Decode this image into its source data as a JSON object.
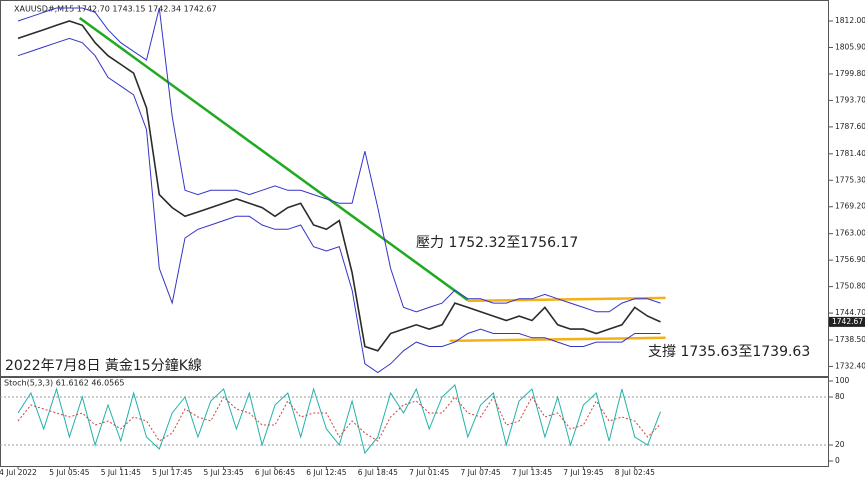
{
  "chart_data": [
    {
      "type": "line",
      "title": "XAUUSD#,M15  1742.70 1743.15 1742.34 1742.67",
      "annotations": [
        "壓力 1752.32至1756.17",
        "支撐 1735.63至1739.63",
        "2022年7月8日 黃金15分鐘K線"
      ],
      "ylim": [
        1730.2,
        1816.84
      ],
      "yticks": [
        {
          "value": 1812.0,
          "label": "1812.00"
        },
        {
          "value": 1805.9,
          "label": "1805.90"
        },
        {
          "value": 1799.8,
          "label": "1799.80"
        },
        {
          "value": 1793.7,
          "label": "1793.70"
        },
        {
          "value": 1787.6,
          "label": "1787.60"
        },
        {
          "value": 1781.4,
          "label": "1781.40"
        },
        {
          "value": 1775.3,
          "label": "1775.30"
        },
        {
          "value": 1769.2,
          "label": "1769.20"
        },
        {
          "value": 1763.0,
          "label": "1763.00"
        },
        {
          "value": 1756.9,
          "label": "1756.90"
        },
        {
          "value": 1750.8,
          "label": "1750.80"
        },
        {
          "value": 1744.7,
          "label": "1744.70"
        },
        {
          "value": 1738.5,
          "label": "1738.50"
        },
        {
          "value": 1732.4,
          "label": "1732.40"
        }
      ],
      "last_price": 1742.67,
      "series": [
        {
          "name": "Price",
          "color": "#2b2b2b",
          "values": [
            1808,
            1809,
            1810,
            1811,
            1812,
            1811,
            1807,
            1804,
            1802,
            1800,
            1792,
            1772,
            1769,
            1767,
            1768,
            1769,
            1770,
            1771,
            1770,
            1769,
            1767,
            1769,
            1770,
            1765,
            1764,
            1766,
            1754,
            1737,
            1736,
            1740,
            1741,
            1742,
            1741,
            1742,
            1747,
            1746,
            1745,
            1744,
            1743,
            1744,
            1743,
            1746,
            1742,
            1741,
            1741,
            1740,
            1741,
            1742,
            1746,
            1744,
            1742.67
          ]
        },
        {
          "name": "Upper band",
          "color": "#3434c8",
          "values": [
            1812,
            1813,
            1814,
            1815,
            1815,
            1815,
            1814,
            1810,
            1807,
            1805,
            1803,
            1815,
            1790,
            1773,
            1772,
            1773,
            1773,
            1773,
            1772,
            1773,
            1774,
            1773,
            1773,
            1772,
            1771,
            1770,
            1770,
            1782,
            1769,
            1755,
            1746,
            1745,
            1746,
            1747,
            1750,
            1748,
            1748,
            1747,
            1747,
            1748,
            1748,
            1749,
            1748,
            1747,
            1746,
            1745,
            1745,
            1747,
            1748,
            1748,
            1747
          ]
        },
        {
          "name": "Lower band",
          "color": "#3434c8",
          "values": [
            1804,
            1805,
            1806,
            1807,
            1808,
            1807,
            1804,
            1799,
            1797,
            1795,
            1787,
            1755,
            1747,
            1762,
            1764,
            1765,
            1766,
            1767,
            1767,
            1765,
            1764,
            1764,
            1765,
            1760,
            1759,
            1760,
            1750,
            1733,
            1731,
            1733,
            1736,
            1738,
            1737,
            1737,
            1738,
            1740,
            1741,
            1740,
            1740,
            1740,
            1739,
            1739,
            1738,
            1737,
            1737,
            1738,
            1738,
            1738,
            1740,
            1740,
            1740
          ]
        }
      ],
      "trendlines": [
        {
          "color": "#1faa1f",
          "x": [
            4.8,
            35
          ],
          "y": [
            1812.7,
            1747.7
          ]
        },
        {
          "color": "#f5b014",
          "x": [
            35,
            50.4
          ],
          "y": [
            1747.5,
            1748.2
          ]
        },
        {
          "color": "#f5b014",
          "x": [
            33.6,
            50.4
          ],
          "y": [
            1738.3,
            1739.0
          ]
        }
      ]
    },
    {
      "type": "line",
      "title": "Stoch(5,3,3) 61.6162 46.0565",
      "ylim": [
        -6.25,
        103.75
      ],
      "yticks": [
        100,
        80,
        20,
        0
      ],
      "levels": [
        80,
        20
      ],
      "categories": [
        "4 Jul 2022",
        null,
        null,
        null,
        "5 Jul 05:45",
        null,
        null,
        null,
        "5 Jul 11:45",
        null,
        null,
        null,
        "5 Jul 17:45",
        null,
        null,
        null,
        "5 Jul 23:45",
        null,
        null,
        null,
        "6 Jul 06:45",
        null,
        null,
        null,
        "6 Jul 12:45",
        null,
        null,
        null,
        "6 Jul 18:45",
        null,
        null,
        null,
        "7 Jul 01:45",
        null,
        null,
        null,
        "7 Jul 07:45",
        null,
        null,
        null,
        "7 Jul 13:45",
        null,
        null,
        null,
        "7 Jul 19:45",
        null,
        null,
        null,
        "8 Jul 02:45",
        null,
        null
      ],
      "series": [
        {
          "name": "Main",
          "color": "#20b2aa",
          "values": [
            60,
            85,
            40,
            90,
            30,
            80,
            20,
            70,
            25,
            85,
            30,
            15,
            60,
            80,
            30,
            75,
            90,
            40,
            85,
            20,
            70,
            85,
            30,
            90,
            40,
            20,
            75,
            10,
            30,
            85,
            60,
            90,
            40,
            80,
            95,
            30,
            70,
            85,
            20,
            75,
            90,
            30,
            80,
            20,
            70,
            85,
            25,
            90,
            30,
            20,
            61.6162
          ]
        },
        {
          "name": "Signal",
          "color": "#d04040",
          "dashed": true,
          "values": [
            50,
            70,
            65,
            60,
            55,
            60,
            45,
            50,
            40,
            55,
            50,
            25,
            35,
            65,
            55,
            50,
            80,
            65,
            60,
            45,
            45,
            75,
            55,
            60,
            60,
            30,
            50,
            35,
            25,
            55,
            70,
            75,
            60,
            60,
            80,
            60,
            55,
            80,
            45,
            50,
            80,
            55,
            60,
            40,
            45,
            75,
            50,
            55,
            50,
            30,
            46.0565
          ]
        }
      ]
    }
  ]
}
